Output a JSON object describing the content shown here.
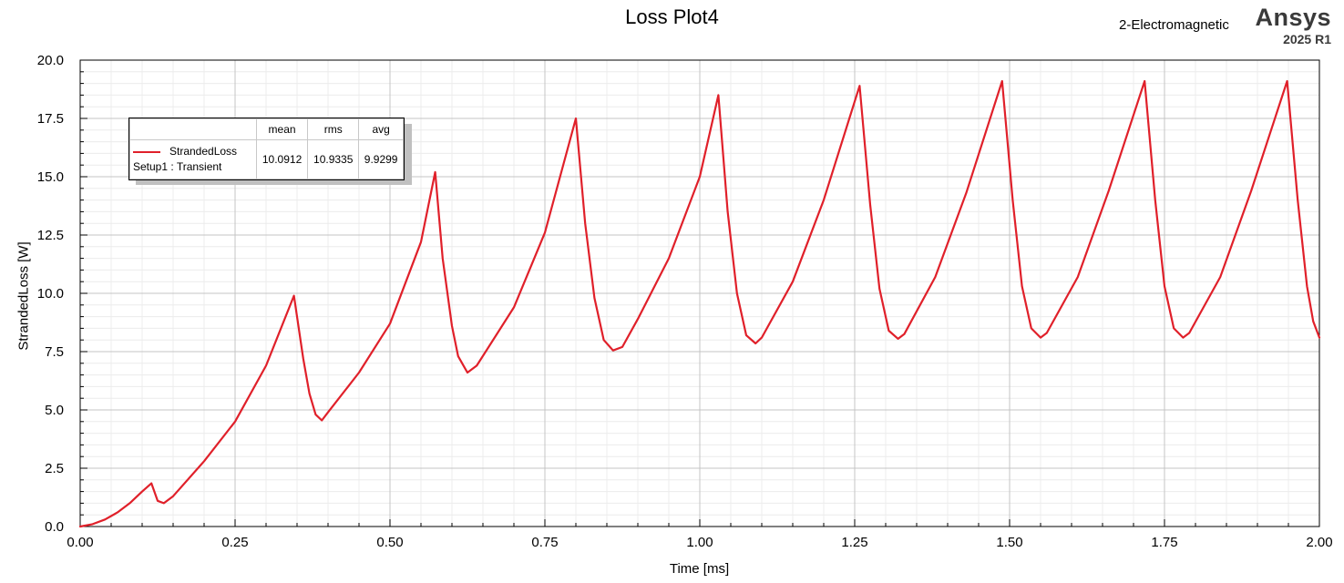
{
  "header": {
    "title": "Loss Plot4",
    "design": "2-Electromagnetic",
    "brand": "Ansys",
    "version": "2025 R1"
  },
  "legend": {
    "columns": [
      "mean",
      "rms",
      "avg"
    ],
    "entry_name": "StrandedLoss",
    "entry_setup": "Setup1 : Transient",
    "values": [
      "10.0912",
      "10.9335",
      "9.9299"
    ]
  },
  "chart_data": {
    "type": "line",
    "xlabel": "Time [ms]",
    "ylabel": "StrandedLoss [W]",
    "xlim": [
      0,
      2.0
    ],
    "ylim": [
      0,
      20.0
    ],
    "xticks": [
      "0.00",
      "0.25",
      "0.50",
      "0.75",
      "1.00",
      "1.25",
      "1.50",
      "1.75",
      "2.00"
    ],
    "yticks": [
      "0.0",
      "2.5",
      "5.0",
      "7.5",
      "10.0",
      "12.5",
      "15.0",
      "17.5",
      "20.0"
    ],
    "grid": true,
    "legend_position": "top-left",
    "series": [
      {
        "name": "StrandedLoss",
        "color": "#e0202a",
        "points": [
          [
            0.0,
            0.0
          ],
          [
            0.02,
            0.1
          ],
          [
            0.04,
            0.3
          ],
          [
            0.06,
            0.6
          ],
          [
            0.08,
            1.0
          ],
          [
            0.1,
            1.5
          ],
          [
            0.115,
            1.85
          ],
          [
            0.125,
            1.1
          ],
          [
            0.135,
            1.0
          ],
          [
            0.15,
            1.3
          ],
          [
            0.2,
            2.8
          ],
          [
            0.25,
            4.5
          ],
          [
            0.3,
            6.9
          ],
          [
            0.345,
            9.9
          ],
          [
            0.36,
            7.2
          ],
          [
            0.37,
            5.7
          ],
          [
            0.38,
            4.8
          ],
          [
            0.39,
            4.55
          ],
          [
            0.4,
            4.9
          ],
          [
            0.45,
            6.6
          ],
          [
            0.5,
            8.7
          ],
          [
            0.55,
            12.2
          ],
          [
            0.573,
            15.2
          ],
          [
            0.585,
            11.5
          ],
          [
            0.6,
            8.6
          ],
          [
            0.61,
            7.3
          ],
          [
            0.625,
            6.6
          ],
          [
            0.64,
            6.9
          ],
          [
            0.7,
            9.4
          ],
          [
            0.75,
            12.6
          ],
          [
            0.8,
            17.5
          ],
          [
            0.815,
            13.0
          ],
          [
            0.83,
            9.8
          ],
          [
            0.845,
            8.0
          ],
          [
            0.86,
            7.55
          ],
          [
            0.875,
            7.7
          ],
          [
            0.9,
            8.9
          ],
          [
            0.95,
            11.5
          ],
          [
            1.0,
            15.0
          ],
          [
            1.03,
            18.5
          ],
          [
            1.045,
            13.5
          ],
          [
            1.06,
            10.0
          ],
          [
            1.075,
            8.2
          ],
          [
            1.09,
            7.85
          ],
          [
            1.1,
            8.1
          ],
          [
            1.15,
            10.5
          ],
          [
            1.2,
            14.0
          ],
          [
            1.258,
            18.9
          ],
          [
            1.275,
            13.8
          ],
          [
            1.29,
            10.2
          ],
          [
            1.305,
            8.4
          ],
          [
            1.32,
            8.05
          ],
          [
            1.33,
            8.25
          ],
          [
            1.38,
            10.7
          ],
          [
            1.43,
            14.3
          ],
          [
            1.488,
            19.1
          ],
          [
            1.505,
            14.0
          ],
          [
            1.52,
            10.3
          ],
          [
            1.535,
            8.5
          ],
          [
            1.55,
            8.1
          ],
          [
            1.56,
            8.3
          ],
          [
            1.61,
            10.7
          ],
          [
            1.66,
            14.4
          ],
          [
            1.718,
            19.1
          ],
          [
            1.735,
            14.0
          ],
          [
            1.75,
            10.3
          ],
          [
            1.765,
            8.5
          ],
          [
            1.78,
            8.1
          ],
          [
            1.79,
            8.3
          ],
          [
            1.84,
            10.7
          ],
          [
            1.89,
            14.4
          ],
          [
            1.948,
            19.1
          ],
          [
            1.965,
            14.0
          ],
          [
            1.98,
            10.3
          ],
          [
            1.99,
            8.8
          ],
          [
            2.0,
            8.1
          ]
        ]
      }
    ]
  }
}
